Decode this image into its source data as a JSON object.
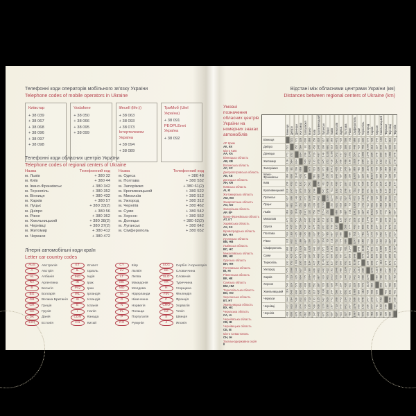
{
  "colors": {
    "accent_red": "#b5404c",
    "page_cream": "#f5f2e6",
    "text_dark": "#4b4b52"
  },
  "left_page": {
    "mobile": {
      "title_uk": "Телефонні коди операторів мобільного зв'язку України",
      "title_en": "Telephone codes of mobile operators in Ukraine",
      "operators": [
        {
          "groups": [
            {
              "label": "Київстар",
              "numbers": [
                "+ 38 039",
                "+ 38 067",
                "+ 38 068",
                "+ 38 096",
                "+ 38 097",
                "+ 38 098"
              ]
            }
          ]
        },
        {
          "groups": [
            {
              "label": "Vodafone",
              "numbers": [
                "+ 38 050",
                "+ 38 066",
                "+ 38 095",
                "+ 38 099"
              ]
            }
          ]
        },
        {
          "groups": [
            {
              "label": "lifecell (life:))",
              "numbers": [
                "+ 38 063",
                "+ 38 093",
                "+ 38 073"
              ]
            },
            {
              "label": "Інтертелеком Україна",
              "numbers": [
                "+ 38 094",
                "+ 38 089"
              ]
            }
          ]
        },
        {
          "groups": [
            {
              "label": "ТриМоб (Utel Україна)",
              "numbers": [
                "+ 38 091"
              ]
            },
            {
              "label": "PEOPLEnet Україна",
              "numbers": [
                "+ 38 092"
              ]
            }
          ]
        }
      ]
    },
    "regional": {
      "title_uk": "Телефонні коди обласних центрів України",
      "title_en": "Telephone codes of regional centers of Ukraine",
      "header_name": "Назва",
      "header_code": "Телефонний код",
      "left_rows": [
        [
          "м. Львів",
          "+ 380 32"
        ],
        [
          "м. Київ",
          "+ 380 44"
        ],
        [
          "м. Івано-Франківськ",
          "+ 380 342"
        ],
        [
          "м. Тернопіль",
          "+ 380 352"
        ],
        [
          "м. Вінниця",
          "+ 380 432"
        ],
        [
          "м. Харків",
          "+ 380 57"
        ],
        [
          "м. Луцьк",
          "+ 380 33(2)"
        ],
        [
          "м. Дніпро",
          "+ 380 56"
        ],
        [
          "м. Рівне",
          "+ 380 362"
        ],
        [
          "м. Хмельницький",
          "+ 380 38(2)"
        ],
        [
          "м. Чернівці",
          "+ 380 37(2)"
        ],
        [
          "м. Житомир",
          "+ 380 412"
        ],
        [
          "м. Черкаси",
          "+ 380 472"
        ]
      ],
      "right_rows": [
        [
          "м. Одеса",
          "+ 380 48"
        ],
        [
          "м. Полтава",
          "+ 380 532"
        ],
        [
          "м. Запоріжжя",
          "+ 380 61(2)"
        ],
        [
          "м. Кропивницький",
          "+ 380 522"
        ],
        [
          "м. Миколаїв",
          "+ 380 512"
        ],
        [
          "м. Ужгород",
          "+ 380 312"
        ],
        [
          "м. Чернігів",
          "+ 380 462"
        ],
        [
          "м. Суми",
          "+ 380 542"
        ],
        [
          "м. Херсон",
          "+ 380 552"
        ],
        [
          "м. Донецьк",
          "+ 380 62(2)"
        ],
        [
          "м. Луганськ",
          "+ 380 642"
        ],
        [
          "м. Сімферополь",
          "+ 380 652"
        ]
      ]
    },
    "car_codes": {
      "title_uk": "Літерні автомобільні коди країн",
      "title_en": "Letter car country codes",
      "columns": [
        [
          [
            "AUS",
            "Австралія"
          ],
          [
            "A",
            "Австрія"
          ],
          [
            "AL",
            "Албанія"
          ],
          [
            "RA",
            "Аргентина"
          ],
          [
            "B",
            "Бельгія"
          ],
          [
            "BG",
            "Болгарія"
          ],
          [
            "GB",
            "Велика Британія"
          ],
          [
            "GR",
            "Греція"
          ],
          [
            "GE",
            "Грузія"
          ],
          [
            "DK",
            "Данія"
          ],
          [
            "EST",
            "Естонія"
          ]
        ],
        [
          [
            "ET",
            "Єгипет"
          ],
          [
            "IL",
            "Ізраїль"
          ],
          [
            "IND",
            "Індія"
          ],
          [
            "IR",
            "Ірак"
          ],
          [
            "IRQ",
            "Іран"
          ],
          [
            "IRL",
            "Ірландія"
          ],
          [
            "IS",
            "Ісландія"
          ],
          [
            "E",
            "Іспанія"
          ],
          [
            "I",
            "Італія"
          ],
          [
            "CDN",
            "Канада"
          ],
          [
            "CN",
            "Китай"
          ]
        ],
        [
          [
            "CY",
            "Кіпр"
          ],
          [
            "LV",
            "Латвія"
          ],
          [
            "LT",
            "Литва"
          ],
          [
            "MK",
            "Македонія"
          ],
          [
            "MD",
            "Молдова"
          ],
          [
            "NL",
            "Нідерланди"
          ],
          [
            "D",
            "Німеччина"
          ],
          [
            "N",
            "Норвегія"
          ],
          [
            "PL",
            "Польща"
          ],
          [
            "P",
            "Португалія"
          ],
          [
            "RO",
            "Румунія"
          ]
        ],
        [
          [
            "SCG",
            "Сербія і Чорногорія"
          ],
          [
            "SK",
            "Словаччина"
          ],
          [
            "SLO",
            "Словенія"
          ],
          [
            "TR",
            "Туреччина"
          ],
          [
            "H",
            "Угорщина"
          ],
          [
            "FIN",
            "Фінляндія"
          ],
          [
            "F",
            "Франція"
          ],
          [
            "CRO",
            "Хорватія"
          ],
          [
            "CZ",
            "Чехія"
          ],
          [
            "S",
            "Швеція"
          ],
          [
            "J",
            "Японія"
          ]
        ]
      ]
    }
  },
  "right_page": {
    "title_uk": "Відстані між обласними центрами України (км)",
    "title_en": "Distances between regional centers of Ukraine (km)",
    "legend": {
      "title": "Умовні позначення обласних центрів України на номерних знаках автомобілів",
      "entries": [
        [
          "АР Крим",
          "АК, КК"
        ],
        [
          "місто Київ",
          "АА, КА"
        ],
        [
          "Вінницька область",
          "АВ, КВ"
        ],
        [
          "Волинська область",
          "АС, КС"
        ],
        [
          "Дніпропетровська область",
          "АЕ, КЕ"
        ],
        [
          "Донецька область",
          "АН, КН"
        ],
        [
          "Київська область",
          "АІ, КІ"
        ],
        [
          "Житомирська область",
          "АМ, КМ"
        ],
        [
          "Закарпатська область",
          "АО, КО"
        ],
        [
          "Запорізька область",
          "АР, КР"
        ],
        [
          "Івано-Франківська область",
          "АТ, КТ"
        ],
        [
          "Харківська область",
          "АХ, КХ"
        ],
        [
          "Кіровоградська область",
          "ВА, НА"
        ],
        [
          "Луганська область",
          "ВВ, НВ"
        ],
        [
          "Львівська область",
          "ВС, НС"
        ],
        [
          "Миколаївська область",
          "ВЕ, НЕ"
        ],
        [
          "Одеська область",
          "ВН, НН"
        ],
        [
          "Полтавська область",
          "ВІ, НІ"
        ],
        [
          "Рівненська область",
          "ВК, НК"
        ],
        [
          "Сумська область",
          "ВМ, НМ"
        ],
        [
          "Тернопільська область",
          "ВО, НО"
        ],
        [
          "Херсонська область",
          "ВТ, НТ"
        ],
        [
          "Хмельницька область",
          "ВХ, НХ"
        ],
        [
          "Черкаська область",
          "СА, ІА"
        ],
        [
          "Чернігівська область",
          "СВ, ІВ"
        ],
        [
          "Чернівецька область",
          "СЕ, ІЕ"
        ],
        [
          "місто Севастополь",
          "СН, ІН"
        ],
        [
          "Загальнодержавна серія",
          "ІІ"
        ]
      ]
    },
    "matrix": {
      "cities": [
        "Вінниця",
        "Дніпро",
        "Донецьк",
        "Житомир",
        "Запоріжжя",
        "Івано-Франківськ",
        "Київ",
        "Кропивницький",
        "Луганськ",
        "Луцьк",
        "Львів",
        "Миколаїв",
        "Одеса",
        "Полтава",
        "Рівне",
        "Сімферополь",
        "Суми",
        "Тернопіль",
        "Ужгород",
        "Харків",
        "Херсон",
        "Хмельницький",
        "Черкаси",
        "Чернівці",
        "Чернігів"
      ],
      "rows": [
        "- 521 771 128 606 369 256 316 917 382 363 471 428 593 311 966 602 232 575 729 540 119 344 312 403",
        "521 - 252 584 81 890 453 245 396 881 916 320 455 183 802 446 420 753 1096 213 324 640 284 833 600",
        "771 252 - 834 208 1140 729 497 148 1131 1166 572 707 435 1052 524 672 1003 1346 335 576 890 536 1083 876",
        "128 584 834 - 669 431 131 379 945 251 418 534 556 468 188 1029 476 295 637 604 603 182 322 374 278",
        "606 81 208 669 - 975 515 330 371 966 1001 405 540 245 887 365 482 838 1181 275 409 725 369 918 662",
        "369 890 1140 431 975 - 561 685 1286 255 132 840 797 898 290 1335 907 134 280 1034 909 250 713 135 708",
        "256 453 729 131 515 561 - 298 811 428 550 490 475 337 321 940 345 425 806 478 551 315 191 538 147",
        "316 245 497 379 330 685 298 - 641 676 711 183 318 248 597 511 469 548 891 387 287 435 125 628 445",
        "917 396 148 945 371 1286 811 641 - 1239 1274 716 851 517 1160 672 615 1149 1492 333 720 1036 682 1229 872",
        "382 881 1131 251 966 255 428 676 1239 - 152 831 853 765 73 1326 773 141 412 901 900 263 619 280 575",
        "363 916 1166 418 1001 132 550 711 1274 152 - 866 799 887 211 1361 895 127 261 1023 935 244 741 267 697",
        "471 320 572 534 405 840 490 183 716 831 866 - 135 431 752 328 652 703 1046 570 69 590 308 713 637",
        "428 455 707 556 540 797 475 318 851 853 799 135 - 566 774 463 787 660 968 705 204 547 443 670 622",
        "593 183 435 468 245 898 337 248 517 765 887 431 566 - 686 611 177 761 1104 144 435 652 234 841 327",
        "311 802 1052 188 887 290 321 597 1160 73 211 752 774 686 - 1247 666 160 471 822 821 192 512 307 468",
        "966 446 524 1029 365 1335 940 511 672 1326 1361 328 463 611 1247 - 848 1198 1541 641 220 1085 636 1278 1087",
        "602 420 672 476 482 907 345 469 615 773 895 652 787 177 666 848 - 770 1113 183 656 660 350 850 260",
        "232 753 1003 295 838 134 425 548 1149 141 127 703 660 761 160 1198 770 - 338 898 772 113 576 172 572",
        "575 1096 1346 637 1181 280 806 891 1492 412 261 1046 968 1104 471 1541 1113 338 - 1240 1115 456 947 336 953",
        "729 213 335 604 275 1034 478 387 333 901 1023 570 705 144 822 641 183 898 1240 - 560 788 370 977 463",
        "540 324 576 603 409 909 551 287 720 900 935 69 204 435 821 220 656 772 1115 560 - 659 377 782 698",
        "119 640 890 182 725 250 315 435 1036 263 244 590 547 652 192 1085 660 113 456 788 659 - 463 193 462",
        "344 284 536 322 369 713 191 125 682 619 741 308 443 234 512 636 350 576 947 370 377 463 - 656 338",
        "312 833 1083 374 918 135 538 628 1229 280 267 713 670 841 307 1278 850 172 336 977 782 193 656 - 685",
        "403 600 876 278 662 708 147 445 872 575 697 637 622 327 468 1087 260 572 953 463 698 462 338 685 -"
      ]
    }
  }
}
